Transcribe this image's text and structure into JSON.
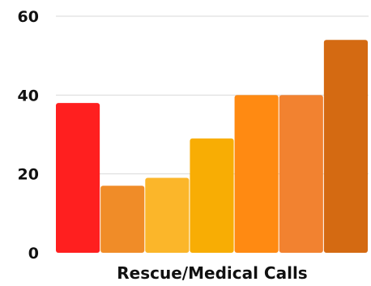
{
  "chart_data": {
    "type": "bar",
    "title": "",
    "xlabel": "Rescue/Medical Calls",
    "ylabel": "",
    "ylim": [
      0,
      60
    ],
    "yticks": [
      0,
      20,
      40,
      60
    ],
    "grid": true,
    "legend": "none",
    "series": [
      {
        "values": [
          38,
          17,
          19,
          29,
          40,
          40,
          54
        ],
        "colors": [
          "#ff1f1f",
          "#f08c28",
          "#fbb62a",
          "#f8ad04",
          "#ff8a12",
          "#f28230",
          "#d46a12"
        ]
      }
    ]
  }
}
